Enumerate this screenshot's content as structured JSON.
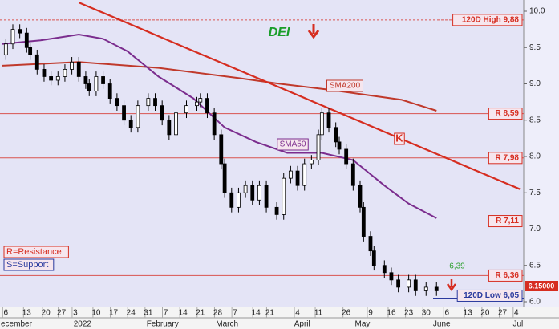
{
  "chart_data": {
    "type": "candlestick",
    "title": "DEI",
    "x": [
      1,
      3,
      5,
      7,
      8,
      10,
      12,
      14,
      16,
      18,
      20,
      22,
      24,
      25,
      27,
      29,
      31,
      33,
      35,
      37,
      39,
      42,
      44,
      46,
      48,
      50,
      53,
      56,
      57,
      59,
      61,
      63,
      64,
      66,
      68,
      70,
      72,
      74,
      76,
      79,
      81,
      83,
      85,
      87,
      89,
      91,
      92,
      94,
      96,
      97,
      99,
      101,
      103,
      104,
      106,
      107,
      110,
      112,
      114,
      117,
      119,
      122,
      125
    ],
    "open": [
      9.4,
      9.55,
      9.75,
      9.7,
      9.5,
      9.4,
      9.2,
      9.1,
      9.05,
      9.1,
      9.2,
      9.3,
      9.1,
      9.0,
      8.9,
      9.1,
      9.0,
      8.8,
      8.7,
      8.5,
      8.4,
      8.7,
      8.8,
      8.7,
      8.5,
      8.3,
      8.6,
      8.7,
      8.75,
      8.8,
      8.6,
      8.3,
      7.9,
      7.5,
      7.3,
      7.5,
      7.6,
      7.4,
      7.6,
      7.3,
      7.2,
      7.7,
      7.8,
      7.6,
      7.9,
      7.95,
      8.3,
      8.6,
      8.4,
      8.2,
      8.1,
      7.9,
      7.6,
      7.3,
      6.9,
      6.7,
      6.5,
      6.4,
      6.3,
      6.2,
      6.3,
      6.15,
      6.2
    ],
    "high": [
      9.62,
      9.82,
      9.82,
      9.77,
      9.57,
      9.47,
      9.27,
      9.17,
      9.17,
      9.27,
      9.37,
      9.37,
      9.17,
      9.07,
      9.17,
      9.17,
      9.07,
      8.87,
      8.77,
      8.57,
      8.77,
      8.87,
      8.87,
      8.77,
      8.57,
      8.67,
      8.77,
      8.82,
      8.87,
      8.87,
      8.67,
      8.37,
      7.97,
      7.57,
      7.57,
      7.67,
      7.67,
      7.67,
      7.67,
      7.37,
      7.77,
      7.87,
      7.87,
      7.97,
      8.02,
      8.37,
      8.67,
      8.67,
      8.47,
      8.27,
      8.17,
      7.97,
      7.67,
      7.37,
      6.97,
      6.77,
      6.57,
      6.47,
      6.37,
      6.37,
      6.37,
      6.27,
      6.27
    ],
    "low": [
      9.33,
      9.48,
      9.63,
      9.43,
      9.33,
      9.13,
      9.03,
      8.98,
      8.98,
      9.03,
      9.13,
      9.03,
      8.93,
      8.83,
      8.83,
      8.93,
      8.73,
      8.63,
      8.43,
      8.33,
      8.33,
      8.63,
      8.63,
      8.43,
      8.23,
      8.23,
      8.53,
      8.63,
      8.68,
      8.53,
      8.23,
      7.83,
      7.43,
      7.23,
      7.23,
      7.43,
      7.33,
      7.33,
      7.23,
      7.13,
      7.13,
      7.63,
      7.53,
      7.53,
      7.83,
      7.88,
      8.23,
      8.33,
      8.13,
      8.03,
      7.83,
      7.53,
      7.23,
      6.83,
      6.63,
      6.43,
      6.33,
      6.23,
      6.13,
      6.13,
      6.08,
      6.08,
      6.08
    ],
    "close": [
      9.55,
      9.75,
      9.7,
      9.5,
      9.4,
      9.2,
      9.1,
      9.05,
      9.1,
      9.2,
      9.3,
      9.1,
      9.0,
      8.9,
      9.1,
      9.0,
      8.8,
      8.7,
      8.5,
      8.4,
      8.7,
      8.8,
      8.7,
      8.5,
      8.3,
      8.6,
      8.7,
      8.75,
      8.8,
      8.6,
      8.3,
      7.9,
      7.5,
      7.3,
      7.5,
      7.6,
      7.4,
      7.6,
      7.3,
      7.2,
      7.7,
      7.8,
      7.6,
      7.9,
      7.95,
      8.3,
      8.6,
      8.4,
      8.2,
      8.1,
      7.9,
      7.6,
      7.3,
      6.9,
      6.7,
      6.5,
      6.4,
      6.3,
      6.2,
      6.3,
      6.15,
      6.2,
      6.15
    ],
    "lines": [
      {
        "name": "SMA200",
        "color": "#c0392b",
        "x": [
          0,
          22,
          45,
          68,
          80,
          94,
          115,
          125
        ],
        "values": [
          9.25,
          9.3,
          9.22,
          9.08,
          9.0,
          8.92,
          8.78,
          8.63
        ]
      },
      {
        "name": "SMA50",
        "color": "#7b2d8e",
        "x": [
          0,
          11,
          22,
          29,
          36,
          45,
          55,
          64,
          73,
          82,
          92,
          101,
          110,
          117,
          125
        ],
        "values": [
          9.55,
          9.6,
          9.68,
          9.62,
          9.45,
          9.1,
          8.8,
          8.4,
          8.2,
          8.05,
          8.05,
          7.95,
          7.6,
          7.35,
          7.15
        ]
      },
      {
        "name": "K",
        "color": "#d62d20",
        "x": [
          22,
          149
        ],
        "values": [
          10.12,
          7.55
        ]
      }
    ],
    "levels": [
      {
        "value": 9.88,
        "label": "120D High 9,88",
        "style": "dashed"
      },
      {
        "value": 8.59,
        "label": "R 8,59",
        "style": "solid"
      },
      {
        "value": 7.98,
        "label": "R 7,98",
        "style": "solid"
      },
      {
        "value": 7.11,
        "label": "R 7,11",
        "style": "solid"
      },
      {
        "value": 6.36,
        "label": "R 6,36",
        "style": "solid"
      },
      {
        "value": 6.05,
        "label": "120D Low 6,05",
        "style": "support"
      }
    ],
    "annotation": "6,39",
    "price_tag": "6.15000",
    "legend": [
      "R=Resistance",
      "S=Support"
    ],
    "xlim": [
      0,
      150
    ],
    "xticks": [
      {
        "value": 1,
        "label": "6"
      },
      {
        "value": 7,
        "label": "13"
      },
      {
        "value": 12.5,
        "label": "20"
      },
      {
        "value": 17,
        "label": "27"
      },
      {
        "value": 21,
        "label": "3"
      },
      {
        "value": 27,
        "label": "10"
      },
      {
        "value": 32,
        "label": "17"
      },
      {
        "value": 37,
        "label": "24"
      },
      {
        "value": 42,
        "label": "31"
      },
      {
        "value": 47,
        "label": "7"
      },
      {
        "value": 52,
        "label": "14"
      },
      {
        "value": 57,
        "label": "21"
      },
      {
        "value": 62,
        "label": "28"
      },
      {
        "value": 67,
        "label": "7"
      },
      {
        "value": 73,
        "label": "14"
      },
      {
        "value": 77,
        "label": "21"
      },
      {
        "value": 85,
        "label": "4"
      },
      {
        "value": 91,
        "label": "11"
      },
      {
        "value": 99,
        "label": "26"
      },
      {
        "value": 106,
        "label": "9"
      },
      {
        "value": 112,
        "label": "16"
      },
      {
        "value": 117,
        "label": "23"
      },
      {
        "value": 122,
        "label": "30"
      },
      {
        "value": 128,
        "label": "6"
      },
      {
        "value": 134,
        "label": "13"
      },
      {
        "value": 139,
        "label": "20"
      },
      {
        "value": 144,
        "label": "27"
      },
      {
        "value": 148,
        "label": "4"
      }
    ],
    "months": [
      {
        "value": -1,
        "label": "ecember"
      },
      {
        "value": 20.5,
        "label": "2022"
      },
      {
        "value": 41.5,
        "label": "February"
      },
      {
        "value": 61.5,
        "label": "March"
      },
      {
        "value": 84,
        "label": "April"
      },
      {
        "value": 101.5,
        "label": "May"
      },
      {
        "value": 124,
        "label": "June"
      },
      {
        "value": 147,
        "label": "Jul"
      }
    ],
    "ylim": [
      6.0,
      10.0
    ],
    "yticks": [
      {
        "value": 10,
        "label": "10.0"
      },
      {
        "value": 9.5,
        "label": "9.5"
      },
      {
        "value": 9,
        "label": "9.0"
      },
      {
        "value": 8.5,
        "label": "8.5"
      },
      {
        "value": 8,
        "label": "8.0"
      },
      {
        "value": 7.5,
        "label": "7.5"
      },
      {
        "value": 7,
        "label": "7.0"
      },
      {
        "value": 6.5,
        "label": "6.5"
      },
      {
        "value": 6,
        "label": "6.0"
      }
    ]
  }
}
